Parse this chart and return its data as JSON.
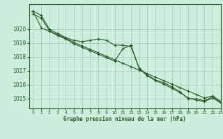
{
  "title": "Graphe pression niveau de la mer (hPa)",
  "background_color": "#cceedd",
  "grid_color": "#aaccbb",
  "line_color": "#2d5a27",
  "marker_color": "#2d5a27",
  "xlim": [
    -0.5,
    23
  ],
  "ylim": [
    1014.3,
    1021.8
  ],
  "yticks": [
    1015,
    1016,
    1017,
    1018,
    1019,
    1020
  ],
  "xtick_labels": [
    "0",
    "1",
    "2",
    "3",
    "4",
    "5",
    "6",
    "7",
    "8",
    "9",
    "10",
    "11",
    "12",
    "13",
    "14",
    "15",
    "16",
    "17",
    "18",
    "19",
    "20",
    "21",
    "22",
    "23"
  ],
  "series": [
    [
      1021.3,
      1021.0,
      1020.0,
      1019.7,
      1019.4,
      1019.2,
      1019.1,
      1019.2,
      1019.3,
      1019.2,
      1018.85,
      1018.85,
      1018.75,
      1017.2,
      1016.7,
      1016.35,
      1016.15,
      1015.85,
      1015.5,
      1015.0,
      1015.0,
      1014.85,
      1015.15,
      1014.75
    ],
    [
      1021.3,
      1020.1,
      1019.85,
      1019.55,
      1019.3,
      1018.95,
      1018.7,
      1018.45,
      1018.2,
      1017.95,
      1017.7,
      1018.6,
      1018.85,
      1017.15,
      1016.65,
      1016.3,
      1016.05,
      1015.75,
      1015.45,
      1015.05,
      1014.9,
      1014.8,
      1015.05,
      1014.7
    ],
    [
      1021.1,
      1020.8,
      1019.9,
      1019.6,
      1019.35,
      1019.05,
      1018.8,
      1018.55,
      1018.3,
      1018.05,
      1017.8,
      1017.55,
      1017.3,
      1017.05,
      1016.8,
      1016.55,
      1016.3,
      1016.05,
      1015.8,
      1015.55,
      1015.3,
      1015.05,
      1015.2,
      1014.8
    ]
  ]
}
